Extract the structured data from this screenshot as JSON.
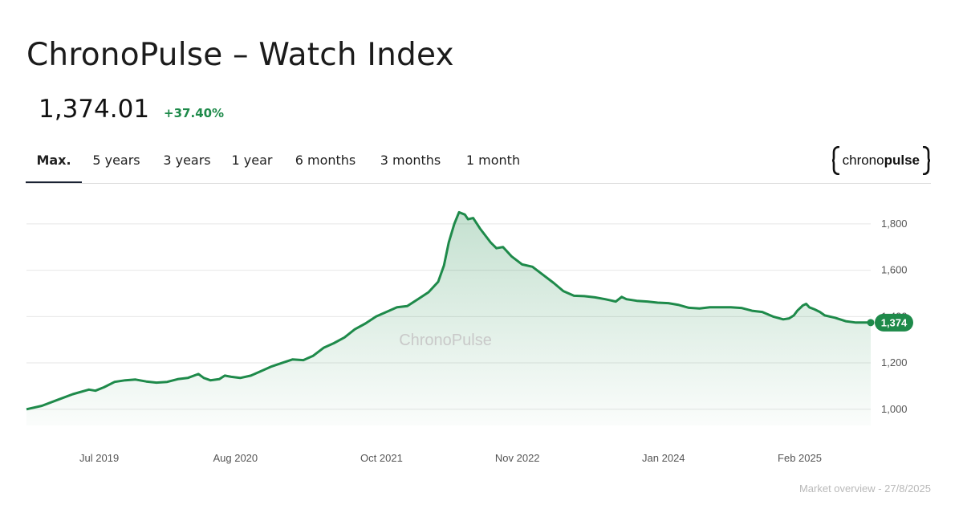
{
  "header": {
    "title": "ChronoPulse – Watch Index",
    "price": "1,374.01",
    "change": "+37.40%"
  },
  "tabs": [
    {
      "label": "Max.",
      "active": true
    },
    {
      "label": "5 years",
      "active": false
    },
    {
      "label": "3 years",
      "active": false
    },
    {
      "label": "1 year",
      "active": false
    },
    {
      "label": "6 months",
      "active": false
    },
    {
      "label": "3 months",
      "active": false
    },
    {
      "label": "1 month",
      "active": false
    }
  ],
  "logo": {
    "part1": "chrono",
    "part2": "pulse"
  },
  "footer": {
    "text": "Market overview - 27/8/2025"
  },
  "colors": {
    "line": "#1e8a4a",
    "accent_text": "#1e8a4a",
    "tab_underline": "#1a2233"
  },
  "chart_data": {
    "type": "area",
    "watermark": "ChronoPulse",
    "x_ticks": [
      "Jul 2019",
      "Aug 2020",
      "Oct 2021",
      "Nov 2022",
      "Jan 2024",
      "Feb 2025"
    ],
    "y_ticks": [
      1000,
      1200,
      1400,
      1600,
      1800
    ],
    "y_tick_labels": [
      "1,000",
      "1,200",
      "1,400",
      "1,600",
      "1,800"
    ],
    "ylim": [
      930,
      1900
    ],
    "xlim": [
      "2018-12-01",
      "2025-08-27"
    ],
    "grid": true,
    "last_value_label": "1,374",
    "series": [
      {
        "points": [
          [
            "2018-12-01",
            1000
          ],
          [
            "2019-01-15",
            1015
          ],
          [
            "2019-03-01",
            1040
          ],
          [
            "2019-04-15",
            1065
          ],
          [
            "2019-06-01",
            1085
          ],
          [
            "2019-06-20",
            1080
          ],
          [
            "2019-07-15",
            1095
          ],
          [
            "2019-08-15",
            1118
          ],
          [
            "2019-09-15",
            1125
          ],
          [
            "2019-10-15",
            1128
          ],
          [
            "2019-11-15",
            1120
          ],
          [
            "2019-12-15",
            1115
          ],
          [
            "2020-01-15",
            1118
          ],
          [
            "2020-02-15",
            1130
          ],
          [
            "2020-03-15",
            1135
          ],
          [
            "2020-04-15",
            1152
          ],
          [
            "2020-05-01",
            1135
          ],
          [
            "2020-05-20",
            1125
          ],
          [
            "2020-06-15",
            1130
          ],
          [
            "2020-07-01",
            1145
          ],
          [
            "2020-07-20",
            1140
          ],
          [
            "2020-08-15",
            1135
          ],
          [
            "2020-09-15",
            1145
          ],
          [
            "2020-10-15",
            1165
          ],
          [
            "2020-11-15",
            1185
          ],
          [
            "2020-12-15",
            1200
          ],
          [
            "2021-01-15",
            1215
          ],
          [
            "2021-02-15",
            1212
          ],
          [
            "2021-03-15",
            1230
          ],
          [
            "2021-04-15",
            1265
          ],
          [
            "2021-05-15",
            1285
          ],
          [
            "2021-06-15",
            1310
          ],
          [
            "2021-07-15",
            1345
          ],
          [
            "2021-08-15",
            1370
          ],
          [
            "2021-09-15",
            1400
          ],
          [
            "2021-10-15",
            1420
          ],
          [
            "2021-11-15",
            1440
          ],
          [
            "2021-12-15",
            1445
          ],
          [
            "2022-01-15",
            1475
          ],
          [
            "2022-02-15",
            1505
          ],
          [
            "2022-03-15",
            1550
          ],
          [
            "2022-04-01",
            1620
          ],
          [
            "2022-04-15",
            1720
          ],
          [
            "2022-05-01",
            1800
          ],
          [
            "2022-05-15",
            1850
          ],
          [
            "2022-06-01",
            1840
          ],
          [
            "2022-06-10",
            1820
          ],
          [
            "2022-06-25",
            1825
          ],
          [
            "2022-07-15",
            1780
          ],
          [
            "2022-08-15",
            1720
          ],
          [
            "2022-09-01",
            1695
          ],
          [
            "2022-09-20",
            1700
          ],
          [
            "2022-10-15",
            1660
          ],
          [
            "2022-11-15",
            1625
          ],
          [
            "2022-12-15",
            1615
          ],
          [
            "2023-01-15",
            1580
          ],
          [
            "2023-02-15",
            1545
          ],
          [
            "2023-03-15",
            1510
          ],
          [
            "2023-04-15",
            1490
          ],
          [
            "2023-05-15",
            1488
          ],
          [
            "2023-06-15",
            1483
          ],
          [
            "2023-07-15",
            1475
          ],
          [
            "2023-08-15",
            1465
          ],
          [
            "2023-09-01",
            1485
          ],
          [
            "2023-09-15",
            1475
          ],
          [
            "2023-10-15",
            1468
          ],
          [
            "2023-11-15",
            1465
          ],
          [
            "2023-12-15",
            1460
          ],
          [
            "2024-01-15",
            1458
          ],
          [
            "2024-02-15",
            1450
          ],
          [
            "2024-03-15",
            1438
          ],
          [
            "2024-04-15",
            1435
          ],
          [
            "2024-05-15",
            1440
          ],
          [
            "2024-06-15",
            1440
          ],
          [
            "2024-07-15",
            1440
          ],
          [
            "2024-08-15",
            1437
          ],
          [
            "2024-09-15",
            1425
          ],
          [
            "2024-10-15",
            1420
          ],
          [
            "2024-11-15",
            1400
          ],
          [
            "2024-12-15",
            1388
          ],
          [
            "2025-01-01",
            1392
          ],
          [
            "2025-01-15",
            1405
          ],
          [
            "2025-01-25",
            1425
          ],
          [
            "2025-02-10",
            1448
          ],
          [
            "2025-02-20",
            1455
          ],
          [
            "2025-03-01",
            1440
          ],
          [
            "2025-03-15",
            1432
          ],
          [
            "2025-04-01",
            1420
          ],
          [
            "2025-04-15",
            1405
          ],
          [
            "2025-05-15",
            1395
          ],
          [
            "2025-06-15",
            1380
          ],
          [
            "2025-07-15",
            1374
          ],
          [
            "2025-08-27",
            1374
          ]
        ]
      }
    ]
  }
}
